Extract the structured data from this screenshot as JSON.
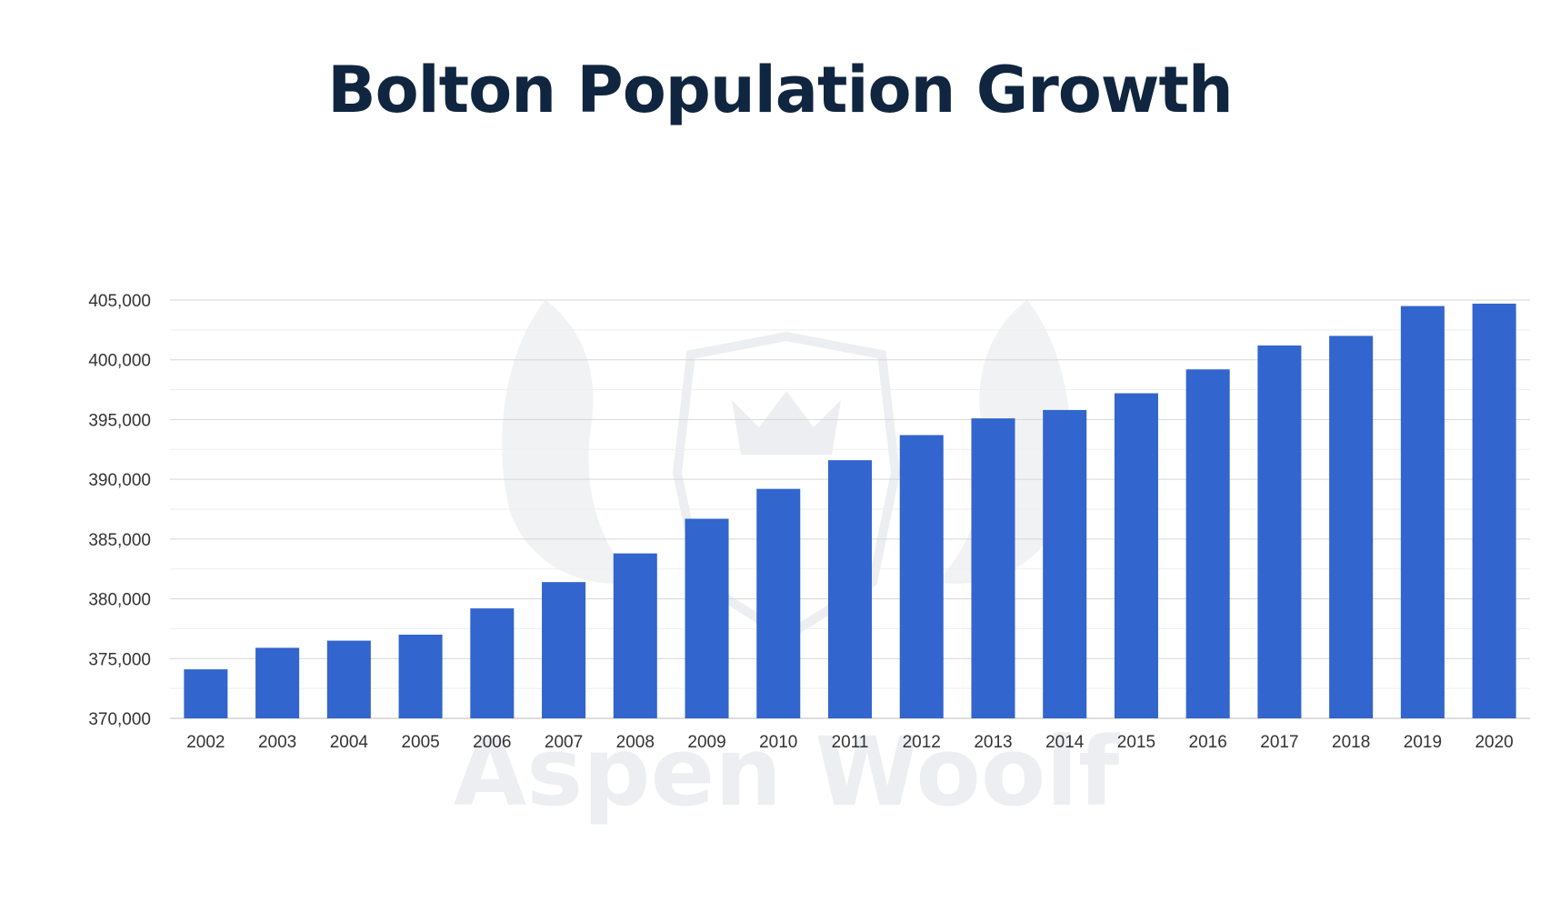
{
  "chart_data": {
    "type": "bar",
    "title": "Bolton Population Growth",
    "xlabel": "",
    "ylabel": "",
    "categories": [
      "2002",
      "2003",
      "2004",
      "2005",
      "2006",
      "2007",
      "2008",
      "2009",
      "2010",
      "2011",
      "2012",
      "2013",
      "2014",
      "2015",
      "2016",
      "2017",
      "2018",
      "2019",
      "2020"
    ],
    "values": [
      374100,
      375900,
      376500,
      377000,
      379200,
      381400,
      383800,
      386700,
      389200,
      391600,
      393700,
      395100,
      395800,
      397200,
      399200,
      401200,
      402000,
      404500,
      404700
    ],
    "ylim": [
      370000,
      405000
    ],
    "y_ticks": [
      "370,000",
      "375,000",
      "380,000",
      "385,000",
      "390,000",
      "395,000",
      "400,000",
      "405,000"
    ],
    "y_tick_values": [
      370000,
      375000,
      380000,
      385000,
      390000,
      395000,
      400000,
      405000
    ],
    "grid": true,
    "legend": "none",
    "bar_color": "#3063cc"
  },
  "watermark": {
    "text": "Aspen Woolf"
  }
}
